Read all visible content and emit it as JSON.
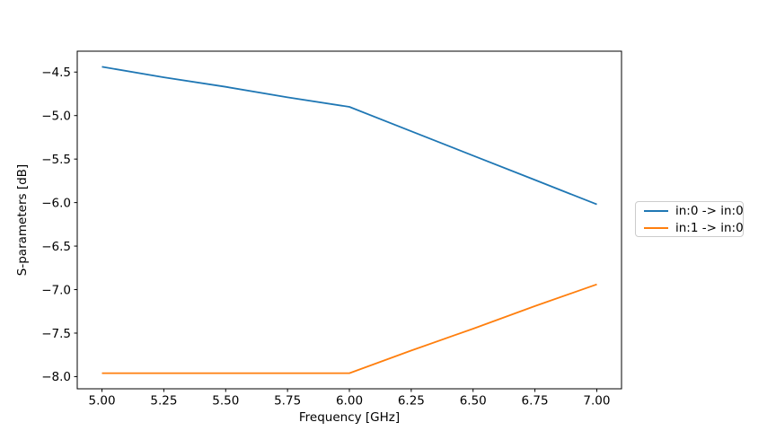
{
  "chart_data": {
    "type": "line",
    "title": "",
    "xlabel": "Frequency [GHz]",
    "ylabel": "S-parameters [dB]",
    "xlim": [
      4.9,
      7.1
    ],
    "ylim": [
      -8.14,
      -4.26
    ],
    "grid": false,
    "legend_position": "center right, outside axes",
    "x": [
      5.0,
      5.25,
      5.5,
      5.75,
      6.0,
      6.25,
      6.5,
      6.75,
      7.0
    ],
    "xticks": {
      "values": [
        5.0,
        5.25,
        5.5,
        5.75,
        6.0,
        6.25,
        6.5,
        6.75,
        7.0
      ],
      "labels": [
        "5.00",
        "5.25",
        "5.50",
        "5.75",
        "6.00",
        "6.25",
        "6.50",
        "6.75",
        "7.00"
      ]
    },
    "yticks": {
      "values": [
        -4.5,
        -5.0,
        -5.5,
        -6.0,
        -6.5,
        -7.0,
        -7.5,
        -8.0
      ],
      "labels": [
        "−4.5",
        "−5.0",
        "−5.5",
        "−6.0",
        "−6.5",
        "−7.0",
        "−7.5",
        "−8.0"
      ]
    },
    "series": [
      {
        "name": "in:0 -> in:0",
        "color": "#1f77b4",
        "values": [
          -4.44,
          -4.56,
          -4.67,
          -4.79,
          -4.9,
          -5.18,
          -5.46,
          -5.74,
          -6.02
        ]
      },
      {
        "name": "in:1 -> in:0",
        "color": "#ff7f0e",
        "values": [
          -7.96,
          -7.96,
          -7.96,
          -7.96,
          -7.96,
          -7.7,
          -7.45,
          -7.19,
          -6.94
        ]
      }
    ]
  }
}
